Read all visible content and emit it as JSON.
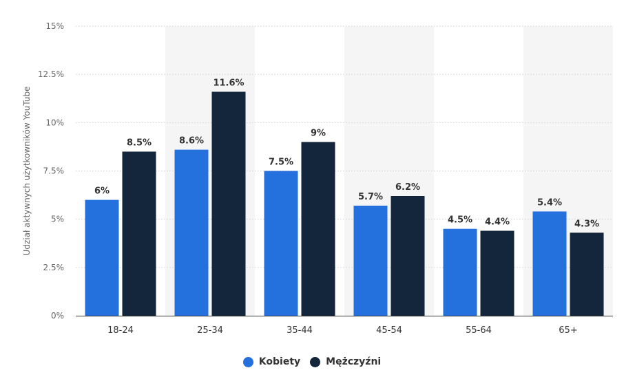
{
  "chart_data": {
    "type": "bar",
    "categories": [
      "18-24",
      "25-34",
      "35-44",
      "45-54",
      "55-64",
      "65+"
    ],
    "series": [
      {
        "name": "Kobiety",
        "color": "#2470dc",
        "values": [
          6,
          8.6,
          7.5,
          5.7,
          4.5,
          5.4
        ],
        "labels": [
          "6%",
          "8.6%",
          "7.5%",
          "5.7%",
          "4.5%",
          "5.4%"
        ]
      },
      {
        "name": "Mężczyźni",
        "color": "#14263b",
        "values": [
          8.5,
          11.6,
          9,
          6.2,
          4.4,
          4.3
        ],
        "labels": [
          "8.5%",
          "11.6%",
          "9%",
          "6.2%",
          "4.4%",
          "4.3%"
        ]
      }
    ],
    "ylabel": "Udział aktywnych użytkowników YouTube",
    "xlabel": "",
    "ylim": [
      0,
      15
    ],
    "yticks": [
      0,
      2.5,
      5,
      7.5,
      10,
      12.5,
      15
    ],
    "ytick_labels": [
      "0%",
      "2.5%",
      "5%",
      "7.5%",
      "10%",
      "12.5%",
      "15%"
    ],
    "grid": "horizontal dotted",
    "legend_position": "bottom-center",
    "alternating_band_color": "#f5f5f5"
  }
}
